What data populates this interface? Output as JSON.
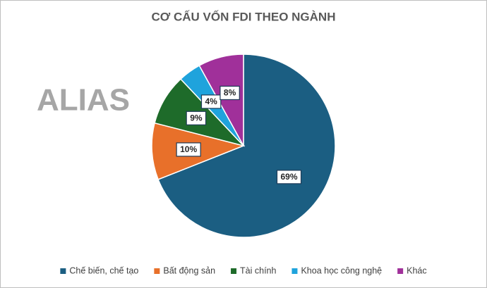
{
  "chart_data": {
    "type": "pie",
    "title": "CƠ CẤU VỐN FDI THEO NGÀNH",
    "watermark": "ALIAS",
    "categories": [
      "Chế biến, chế tạo",
      "Bất động sản",
      "Tài chính",
      "Khoa học công nghệ",
      "Khác"
    ],
    "values": [
      69,
      10,
      9,
      4,
      8
    ],
    "value_labels": [
      "69%",
      "10%",
      "9%",
      "4%",
      "8%"
    ],
    "colors": [
      "#1b5e82",
      "#e8702a",
      "#1e6b2a",
      "#1fa3dc",
      "#a0309a"
    ],
    "legend": "bottom"
  }
}
